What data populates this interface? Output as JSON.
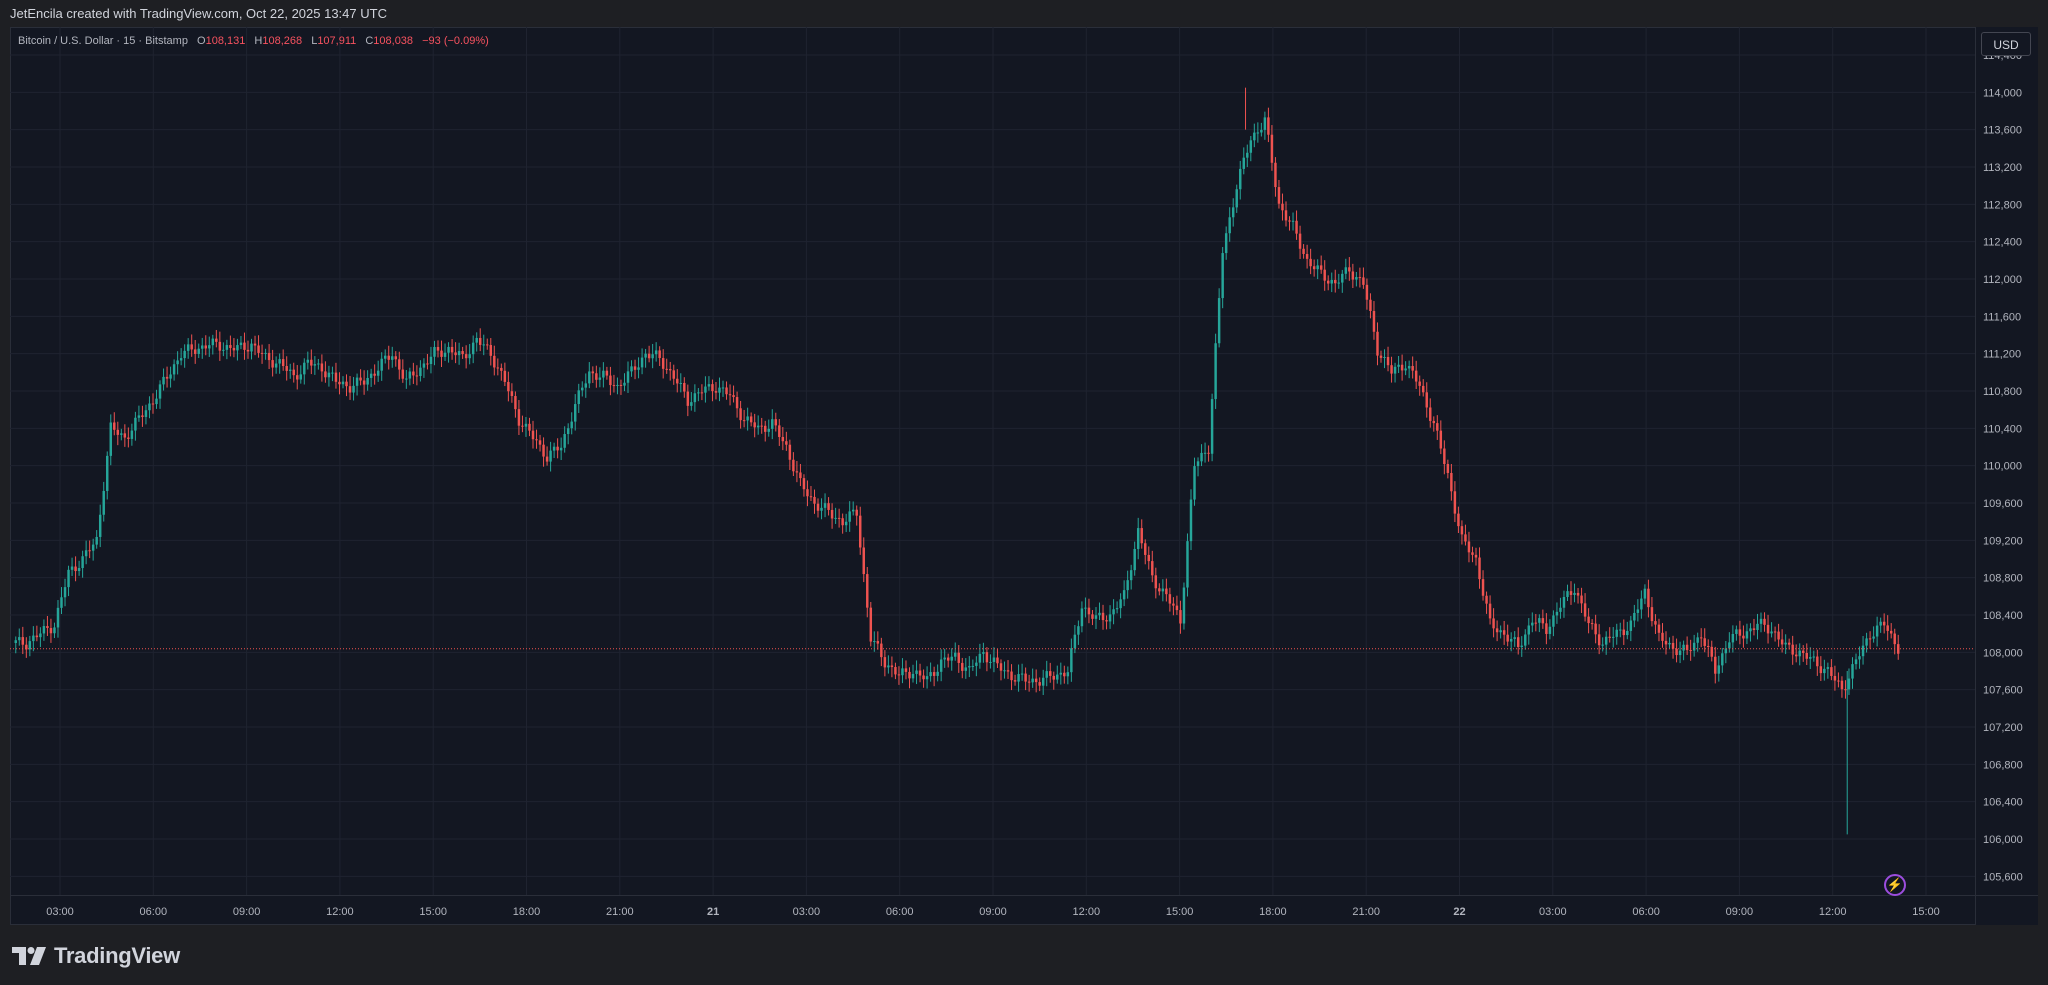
{
  "header": {
    "attribution": "JetEncila created with TradingView.com, Oct 22, 2025 13:47 UTC"
  },
  "legend": {
    "symbol": "Bitcoin / U.S. Dollar · 15 · Bitstamp",
    "open_key": "O",
    "open": "108,131",
    "high_key": "H",
    "high": "108,268",
    "low_key": "L",
    "low": "107,911",
    "close_key": "C",
    "close": "108,038",
    "change": "−93 (−0.09%)"
  },
  "currency": "USD",
  "brand": "TradingView",
  "colors": {
    "up": "#26a69a",
    "down": "#ef5350",
    "background": "#131722",
    "price_line": "#ef5350"
  },
  "chart_data": {
    "type": "candlestick",
    "title": "Bitcoin / U.S. Dollar · 15 · Bitstamp",
    "last_price": 108038,
    "last_price_label": "108,038",
    "ylim": [
      105400,
      114700
    ],
    "y_ticks": [
      105600,
      106000,
      106400,
      106800,
      107200,
      107600,
      108000,
      108400,
      108800,
      109200,
      109600,
      110000,
      110400,
      110800,
      111200,
      111600,
      112000,
      112400,
      112800,
      113200,
      113600,
      114000,
      114400
    ],
    "y_tick_labels": [
      "105,600",
      "106,000",
      "106,400",
      "106,800",
      "107,200",
      "107,600",
      "108,000",
      "108,400",
      "108,800",
      "109,200",
      "109,600",
      "110,000",
      "110,400",
      "110,800",
      "111,200",
      "111,600",
      "112,000",
      "112,400",
      "112,800",
      "113,200",
      "113,600",
      "114,000",
      "114,400"
    ],
    "x_tick_labels": [
      "03:00",
      "06:00",
      "09:00",
      "12:00",
      "15:00",
      "18:00",
      "21:00",
      "21",
      "03:00",
      "06:00",
      "09:00",
      "12:00",
      "15:00",
      "18:00",
      "21:00",
      "22",
      "03:00",
      "06:00",
      "09:00",
      "12:00",
      "15:00"
    ],
    "grid": true,
    "series_hourly_close": [
      108100,
      108200,
      108300,
      108850,
      109000,
      109200,
      110400,
      110300,
      110500,
      110700,
      110950,
      111200,
      111250,
      111300,
      111280,
      111250,
      111300,
      111150,
      111100,
      110950,
      111100,
      111050,
      110900,
      110850,
      110900,
      111050,
      111200,
      110900,
      111050,
      111200,
      111250,
      111150,
      111350,
      111200,
      110900,
      110500,
      110300,
      110100,
      110200,
      110650,
      111000,
      110950,
      110850,
      111000,
      111200,
      111150,
      110950,
      110700,
      110800,
      110850,
      110750,
      110500,
      110400,
      110450,
      110200,
      109800,
      109600,
      109500,
      109400,
      109500,
      108150,
      107900,
      107750,
      107800,
      107700,
      107900,
      107950,
      107800,
      108000,
      107850,
      107750,
      107700,
      107700,
      107750,
      107800,
      108500,
      108350,
      108400,
      108600,
      109300,
      108800,
      108600,
      108350,
      110000,
      110200,
      112300,
      113000,
      113500,
      113700,
      112800,
      112550,
      112200,
      112050,
      111950,
      112100,
      111950,
      111250,
      111000,
      111100,
      110850,
      110450,
      109900,
      109200,
      109000,
      108300,
      108200,
      108050,
      108350,
      108250,
      108500,
      108700,
      108300,
      108100,
      108200,
      108300,
      108650,
      108150,
      108050,
      108000,
      108200,
      107800,
      108150,
      108200,
      108300,
      108250,
      108050,
      108000,
      107900,
      107800,
      107600,
      107900,
      108200,
      108300,
      108050
    ],
    "ohlc_extremes": [
      {
        "label": "high",
        "value": 114050
      },
      {
        "label": "low",
        "value": 106050
      }
    ]
  }
}
